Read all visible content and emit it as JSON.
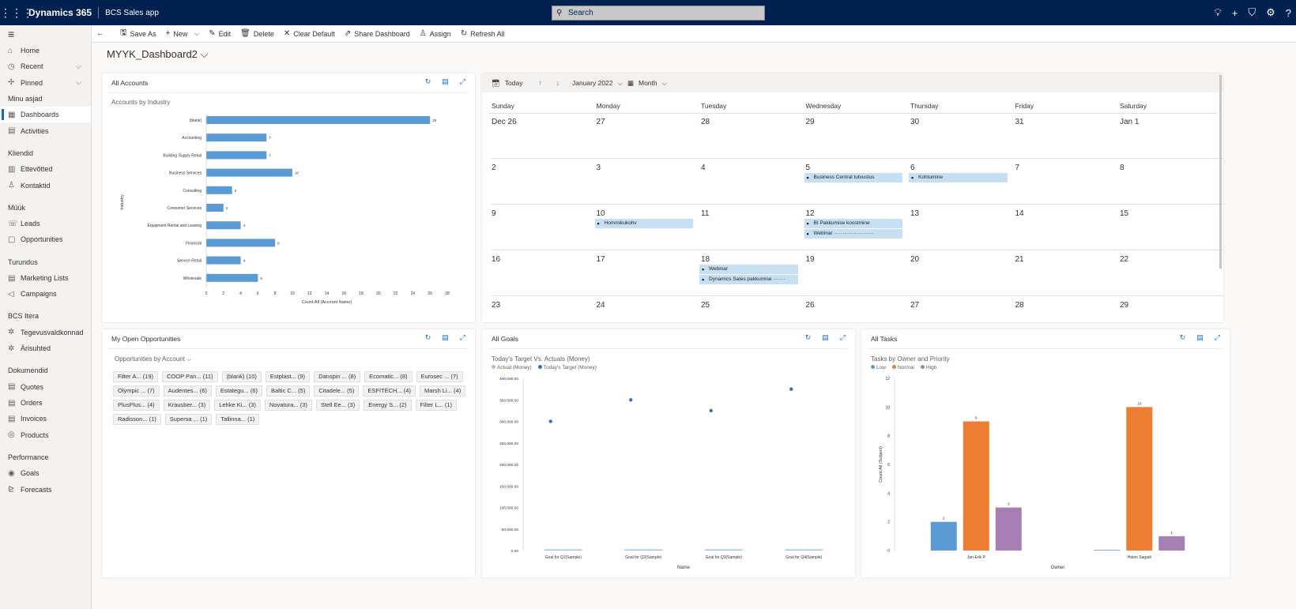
{
  "topbar": {
    "app": "Dynamics 365",
    "subapp": "BCS Sales app",
    "search_placeholder": "Search"
  },
  "sidebar": {
    "items": [
      {
        "name": "home",
        "icon": "⌂",
        "label": "Home"
      },
      {
        "name": "recent",
        "icon": "◷",
        "label": "Recent",
        "chev": "⌵"
      },
      {
        "name": "pinned",
        "icon": "✢",
        "label": "Pinned",
        "chev": "⌵"
      }
    ],
    "groups": [
      {
        "title": "Minu asjad",
        "items": [
          {
            "name": "dashboards",
            "icon": "▦",
            "label": "Dashboards",
            "active": true
          },
          {
            "name": "activities",
            "icon": "▤",
            "label": "Activities"
          }
        ]
      },
      {
        "title": "Kliendid",
        "items": [
          {
            "name": "ettevotted",
            "icon": "▥",
            "label": "Ettevõtted"
          },
          {
            "name": "kontaktid",
            "icon": "♙",
            "label": "Kontaktid"
          }
        ]
      },
      {
        "title": "Müük",
        "items": [
          {
            "name": "leads",
            "icon": "☏",
            "label": "Leads"
          },
          {
            "name": "opportunities",
            "icon": "▢",
            "label": "Opportunities"
          }
        ]
      },
      {
        "title": "Turundus",
        "items": [
          {
            "name": "marketing-lists",
            "icon": "▤",
            "label": "Marketing Lists"
          },
          {
            "name": "campaigns",
            "icon": "◁",
            "label": "Campaigns"
          }
        ]
      },
      {
        "title": "BCS Itera",
        "items": [
          {
            "name": "tegevusvaldkonnad",
            "icon": "✲",
            "label": "Tegevusvaldkonnad"
          },
          {
            "name": "arisuhted",
            "icon": "✲",
            "label": "Ärisuhted"
          }
        ]
      },
      {
        "title": "Dokumendid",
        "items": [
          {
            "name": "quotes",
            "icon": "▤",
            "label": "Quotes"
          },
          {
            "name": "orders",
            "icon": "▤",
            "label": "Orders"
          },
          {
            "name": "invoices",
            "icon": "▤",
            "label": "Invoices"
          },
          {
            "name": "products",
            "icon": "◎",
            "label": "Products"
          }
        ]
      },
      {
        "title": "Performance",
        "items": [
          {
            "name": "goals",
            "icon": "◉",
            "label": "Goals"
          },
          {
            "name": "forecasts",
            "icon": "⊵",
            "label": "Forecasts"
          }
        ]
      }
    ]
  },
  "commands": [
    {
      "name": "save-as",
      "icon": "🖫",
      "label": "Save As"
    },
    {
      "name": "new",
      "icon": "+",
      "label": "New",
      "chev": "⌵"
    },
    {
      "name": "edit",
      "icon": "✎",
      "label": "Edit"
    },
    {
      "name": "delete",
      "icon": "🗑",
      "label": "Delete"
    },
    {
      "name": "clear-default",
      "icon": "✕",
      "label": "Clear Default"
    },
    {
      "name": "share-dashboard",
      "icon": "⇗",
      "label": "Share Dashboard"
    },
    {
      "name": "assign",
      "icon": "♙",
      "label": "Assign"
    },
    {
      "name": "refresh-all",
      "icon": "↻",
      "label": "Refresh All"
    }
  ],
  "page": {
    "title": "MYYK_Dashboard2"
  },
  "accounts": {
    "title": "All Accounts",
    "chart_title": "Accounts by Industry",
    "chart_data": {
      "type": "bar",
      "orientation": "horizontal",
      "categories": [
        "(blank)",
        "Accounting",
        "Building Supply Retail",
        "Business Services",
        "Consulting",
        "Consumer Services",
        "Equipment Rental and Leasing",
        "Financial",
        "Service Retail",
        "Wholesale"
      ],
      "values": [
        26,
        7,
        7,
        10,
        3,
        2,
        4,
        8,
        4,
        6
      ],
      "xlabel": "Count:All (Account Name)",
      "ylabel": "Industry",
      "xlim": [
        0,
        28
      ],
      "xticks": [
        0,
        2,
        4,
        6,
        8,
        10,
        12,
        14,
        16,
        18,
        20,
        22,
        24,
        26,
        28
      ],
      "color": "#5b9bd5"
    }
  },
  "calendar": {
    "today": "Today",
    "month_label": "January 2022",
    "view": "Month",
    "days": [
      "Sunday",
      "Monday",
      "Tuesday",
      "Wednesday",
      "Thursday",
      "Friday",
      "Saturday"
    ],
    "weeks": [
      [
        "Dec 26",
        "27",
        "28",
        "29",
        "30",
        "31",
        "Jan 1"
      ],
      [
        "2",
        "3",
        "4",
        "5",
        "6",
        "7",
        "8"
      ],
      [
        "9",
        "10",
        "11",
        "12",
        "13",
        "14",
        "15"
      ],
      [
        "16",
        "17",
        "18",
        "19",
        "20",
        "21",
        "22"
      ],
      [
        "23",
        "24",
        "25",
        "26",
        "27",
        "28",
        "29"
      ]
    ],
    "events": [
      {
        "week": 1,
        "day": 3,
        "slot": 0,
        "label": "Business Central tutvustus"
      },
      {
        "week": 1,
        "day": 4,
        "slot": 0,
        "label": "Kohtumine"
      },
      {
        "week": 2,
        "day": 1,
        "slot": 0,
        "label": "Hommikukohv"
      },
      {
        "week": 2,
        "day": 3,
        "slot": 0,
        "label": "BI Pakkumise koostmine"
      },
      {
        "week": 2,
        "day": 3,
        "slot": 1,
        "label": "Webinar ·······················"
      },
      {
        "week": 3,
        "day": 2,
        "slot": 0,
        "label": "Webinar"
      },
      {
        "week": 3,
        "day": 2,
        "slot": 1,
        "label": "Dynamics Sales pakkumise ·······"
      }
    ]
  },
  "opps": {
    "title": "My Open Opportunities",
    "view": "Opportunities by Account",
    "chips": [
      "Filter A... (19)",
      "COOP Pan... (11)",
      "(blank) (10)",
      "Estplast... (9)",
      "Danspin ... (8)",
      "Ecomatic... (8)",
      "Eurosec ... (7)",
      "Olympic ... (7)",
      "Audentes... (6)",
      "Estategu... (6)",
      "Baltic C... (5)",
      "Citadele... (5)",
      "ESFITECH... (4)",
      "Marsh Li... (4)",
      "PlusPlus... (4)",
      "Krausber... (3)",
      "Lehke Ki... (3)",
      "Novatura... (3)",
      "Stell Ee... (3)",
      "Energy S... (2)",
      "Filter L... (1)",
      "Radisson... (1)",
      "Supersa ... (1)",
      "Tallinna... (1)"
    ]
  },
  "goals": {
    "title": "All Goals",
    "chart_title": "Today's Target Vs. Actuals (Money)",
    "chart_data": {
      "type": "bar",
      "categories": [
        "Goal for Q1(Sample)",
        "Goal for Q2(Sample)",
        "Goal for Q3(Sample)",
        "Goal for Q4(Sample)"
      ],
      "series": [
        {
          "name": "Actual (Money)",
          "type": "bar",
          "values": [
            0,
            0,
            0,
            0
          ],
          "color": "#9dc3e6"
        },
        {
          "name": "Today's Target (Money)",
          "type": "scatter",
          "values": [
            300000,
            350000,
            325000,
            375000
          ],
          "color": "#2e75b6"
        }
      ],
      "xlabel": "Name",
      "ylim": [
        0,
        400000
      ],
      "yticks": [
        "0.00",
        "50,000.00",
        "100,000.00",
        "150,000.00",
        "200,000.00",
        "250,000.00",
        "300,000.00",
        "350,000.00",
        "400,000.00"
      ]
    }
  },
  "tasks": {
    "title": "All Tasks",
    "chart_title": "Tasks by Owner and Priority",
    "chart_data": {
      "type": "bar",
      "categories": [
        "Jan-Erik P",
        "Helen Sagadi"
      ],
      "series": [
        {
          "name": "Low",
          "values": [
            2,
            0
          ],
          "color": "#5b9bd5"
        },
        {
          "name": "Normal",
          "values": [
            9,
            10
          ],
          "color": "#ed7d31"
        },
        {
          "name": "High",
          "values": [
            3,
            1
          ],
          "color": "#a77fb5"
        }
      ],
      "xlabel": "Owner",
      "ylabel": "Count:All (Subject)",
      "ylim": [
        0,
        12
      ],
      "yticks": [
        0,
        2,
        4,
        6,
        8,
        10,
        12
      ]
    }
  }
}
